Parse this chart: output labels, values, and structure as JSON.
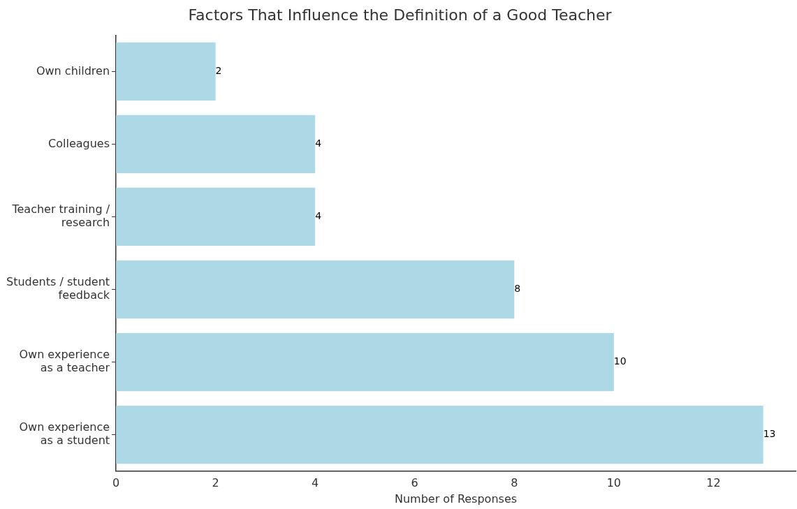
{
  "chart_data": {
    "type": "bar",
    "orientation": "horizontal",
    "title": "Factors That Influence the Definition of a Good Teacher",
    "xlabel": "Number of Responses",
    "categories": [
      "Own children",
      "Colleagues",
      "Teacher training / research",
      "Students / student feedback",
      "Own experience as a teacher",
      "Own experience as a student"
    ],
    "values": [
      2,
      4,
      4,
      8,
      10,
      13
    ],
    "color": "#add8e6",
    "xlim": [
      0,
      13.65
    ],
    "xticks": [
      0,
      2,
      4,
      6,
      8,
      10,
      12
    ],
    "data_labels": true,
    "grid": false,
    "legend": false
  }
}
